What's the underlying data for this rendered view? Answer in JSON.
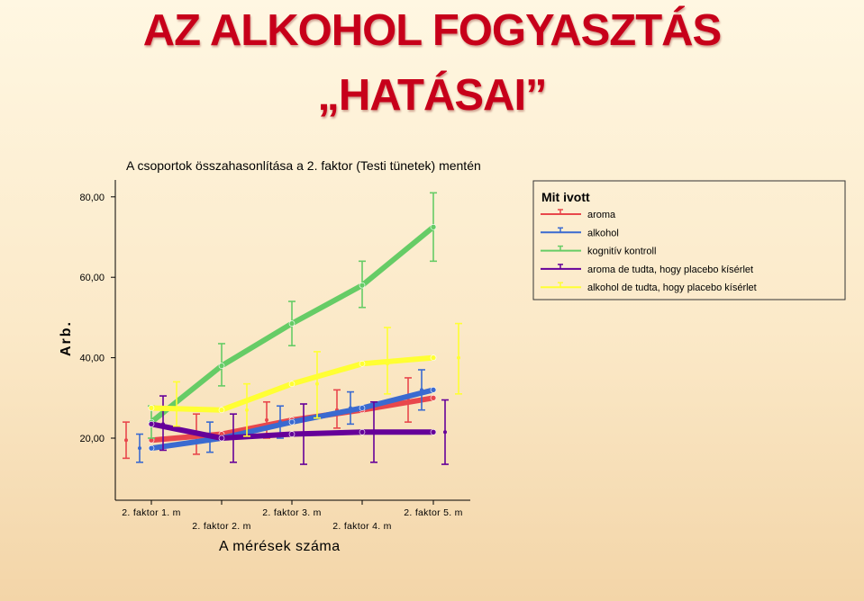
{
  "slide": {
    "title_line1": "AZ ALKOHOL FOGYASZTÁS",
    "title_line2": "„HATÁSAI”",
    "title_color": "#c7001a"
  },
  "chart_data": {
    "type": "line",
    "title": "A csoportok összahasonlítása a 2. faktor (Testi tünetek) mentén",
    "xlabel": "A mérések száma",
    "ylabel": "Arb.",
    "categories": [
      "2. faktor 1. m",
      "2. faktor 2. m",
      "2. faktor 3. m",
      "2. faktor 4. m",
      "2. faktor 5. m"
    ],
    "yticks": [
      "20,00",
      "40,00",
      "60,00",
      "80,00"
    ],
    "ylim": [
      13,
      82
    ],
    "legend_title": "Mit ivott",
    "legend_position": "top-right",
    "error_bars": true,
    "series": [
      {
        "name": "aroma",
        "color": "#e8474c",
        "values": [
          19.5,
          21,
          24.5,
          27,
          30
        ],
        "errors": [
          [
            15,
            24
          ],
          [
            16,
            26
          ],
          [
            20,
            29
          ],
          [
            22.5,
            32
          ],
          [
            24,
            35
          ]
        ]
      },
      {
        "name": "alkohol",
        "color": "#3a6ad0",
        "values": [
          17.5,
          20,
          24,
          27.5,
          32
        ],
        "errors": [
          [
            14,
            21
          ],
          [
            16.5,
            24
          ],
          [
            20,
            28
          ],
          [
            23.5,
            31.5
          ],
          [
            27,
            37
          ]
        ]
      },
      {
        "name": "kognitív kontroll",
        "color": "#66cc66",
        "values": [
          24,
          38,
          48.5,
          58,
          72.5
        ],
        "errors": [
          [
            20,
            28
          ],
          [
            33,
            43.5
          ],
          [
            43,
            54
          ],
          [
            52.5,
            64
          ],
          [
            64,
            81
          ]
        ]
      },
      {
        "name": "aroma de tudta, hogy placebo kísérlet",
        "color": "#660099",
        "values": [
          23.5,
          20,
          21,
          21.5,
          21.5
        ],
        "errors": [
          [
            17,
            30.5
          ],
          [
            14,
            26
          ],
          [
            13.5,
            28.5
          ],
          [
            14,
            29
          ],
          [
            13.5,
            29.5
          ]
        ]
      },
      {
        "name": "alkohol de tudta, hogy placebo kísérlet",
        "color": "#ffff33",
        "values": [
          27.5,
          27,
          33.5,
          38.5,
          40
        ],
        "errors": [
          [
            23,
            34
          ],
          [
            20.5,
            33.5
          ],
          [
            25,
            41.5
          ],
          [
            31,
            47.5
          ],
          [
            31,
            48.5
          ]
        ]
      }
    ]
  }
}
